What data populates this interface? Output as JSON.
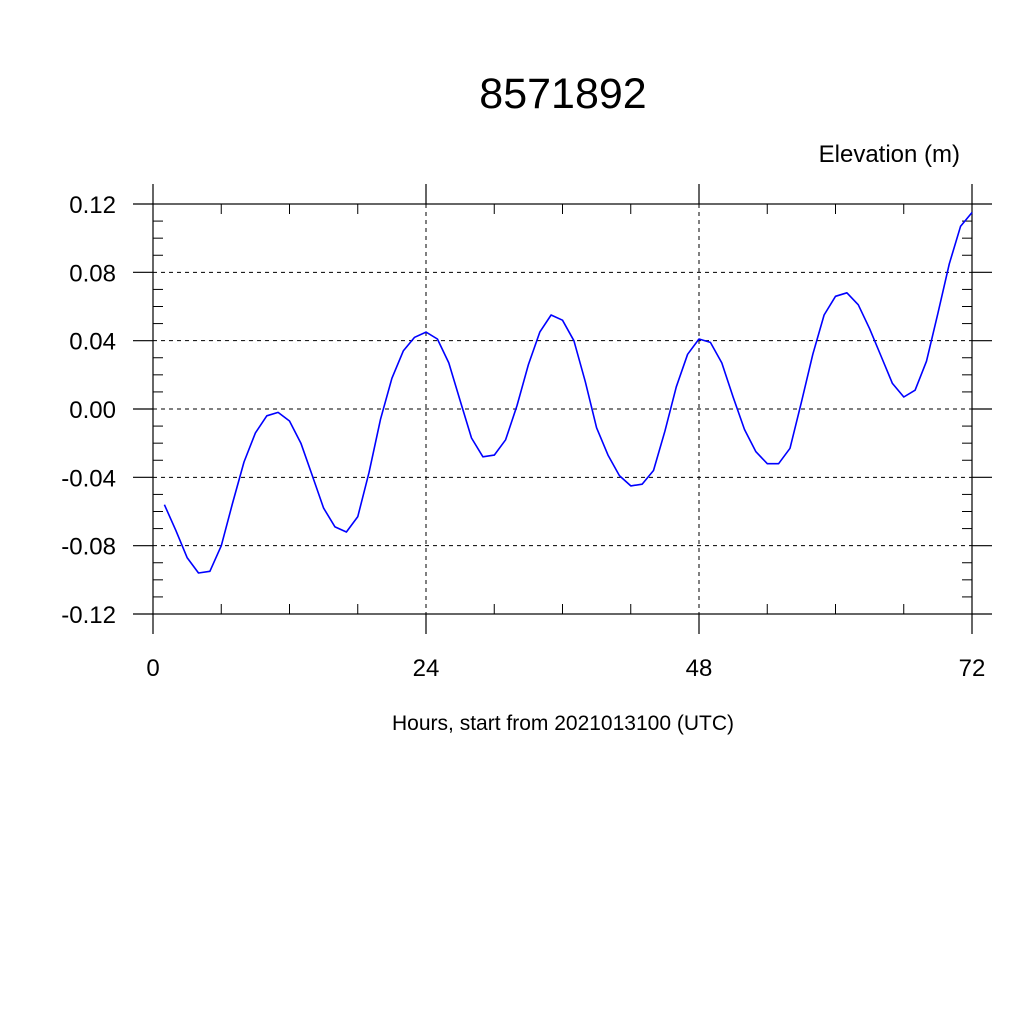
{
  "chart_data": {
    "type": "line",
    "title": "8571892",
    "ylabel": "Elevation (m)",
    "xlabel": "Hours, start from 2021013100 (UTC)",
    "xlim": [
      0,
      72
    ],
    "ylim": [
      -0.12,
      0.12
    ],
    "x_ticks": [
      0,
      24,
      48,
      72
    ],
    "x_tick_labels": [
      "0",
      "24",
      "48",
      "72"
    ],
    "x_minor_step": 6,
    "y_ticks": [
      -0.12,
      -0.08,
      -0.04,
      0.0,
      0.04,
      0.08,
      0.12
    ],
    "y_tick_labels": [
      "-0.12",
      "-0.08",
      "-0.04",
      "0.00",
      "0.04",
      "0.08",
      "0.12"
    ],
    "y_minor_step": 0.01,
    "grid": true,
    "series": [
      {
        "color": "#0000ff",
        "x": [
          1,
          2,
          3,
          4,
          5,
          6,
          7,
          8,
          9,
          10,
          11,
          12,
          13,
          14,
          15,
          16,
          17,
          18,
          19,
          20,
          21,
          22,
          23,
          24,
          25,
          26,
          27,
          28,
          29,
          30,
          31,
          32,
          33,
          34,
          35,
          36,
          37,
          38,
          39,
          40,
          41,
          42,
          43,
          44,
          45,
          46,
          47,
          48,
          49,
          50,
          51,
          52,
          53,
          54,
          55,
          56,
          57,
          58,
          59,
          60,
          61,
          62,
          63,
          64,
          65,
          66,
          67,
          68,
          69,
          70,
          71,
          72
        ],
        "values": [
          -0.056,
          -0.071,
          -0.087,
          -0.096,
          -0.095,
          -0.08,
          -0.055,
          -0.031,
          -0.014,
          -0.004,
          -0.002,
          -0.007,
          -0.02,
          -0.039,
          -0.058,
          -0.069,
          -0.072,
          -0.063,
          -0.037,
          -0.006,
          0.018,
          0.034,
          0.042,
          0.045,
          0.041,
          0.027,
          0.005,
          -0.017,
          -0.028,
          -0.027,
          -0.018,
          0.002,
          0.026,
          0.045,
          0.055,
          0.052,
          0.04,
          0.016,
          -0.011,
          -0.027,
          -0.039,
          -0.045,
          -0.044,
          -0.036,
          -0.013,
          0.013,
          0.032,
          0.041,
          0.039,
          0.027,
          0.007,
          -0.012,
          -0.025,
          -0.032,
          -0.032,
          -0.023,
          0.004,
          0.032,
          0.055,
          0.066,
          0.068,
          0.061,
          0.047,
          0.031,
          0.015,
          0.007,
          0.011,
          0.028,
          0.056,
          0.085,
          0.107,
          0.115
        ]
      }
    ]
  }
}
